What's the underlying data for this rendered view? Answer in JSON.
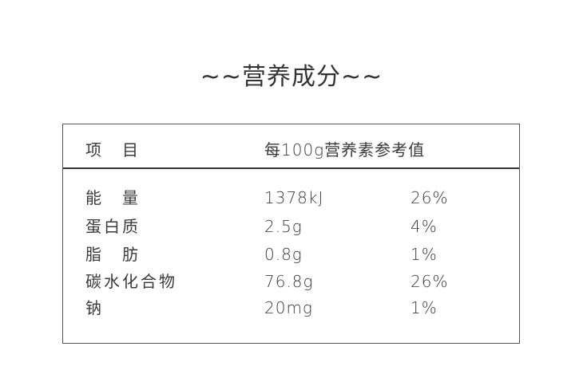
{
  "title": "~~营养成分~~",
  "table": {
    "headers": [
      "项　目",
      "每100g营养素参考值"
    ],
    "rows": [
      {
        "item": "能　量",
        "per100g": "1378kJ",
        "nrv": "26%"
      },
      {
        "item": "蛋白质",
        "per100g": "2.5g",
        "nrv": "4%"
      },
      {
        "item": "脂　肪",
        "per100g": "0.8g",
        "nrv": "1%"
      },
      {
        "item": "碳水化合物",
        "per100g": "76.8g",
        "nrv": "26%"
      },
      {
        "item": "钠",
        "per100g": "20mg",
        "nrv": "1%"
      }
    ]
  }
}
